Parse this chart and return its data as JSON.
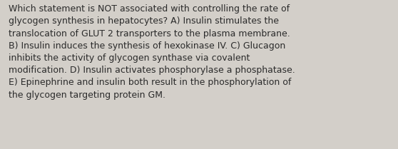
{
  "wrapped_text": "Which statement is NOT associated with controlling the rate of\nglycogen synthesis in hepatocytes? A) Insulin stimulates the\ntranslocation of GLUT 2 transporters to the plasma membrane.\nB) Insulin induces the synthesis of hexokinase IV. C) Glucagon\ninhibits the activity of glycogen synthase via covalent\nmodification. D) Insulin activates phosphorylase a phosphatase.\nE) Epinephrine and insulin both result in the phosphorylation of\nthe glycogen targeting protein GM.",
  "background_color": "#d3cfc9",
  "text_color": "#2b2b2b",
  "font_size": 9.0,
  "font_family": "DejaVu Sans",
  "fig_width": 5.58,
  "fig_height": 2.09,
  "dpi": 100
}
